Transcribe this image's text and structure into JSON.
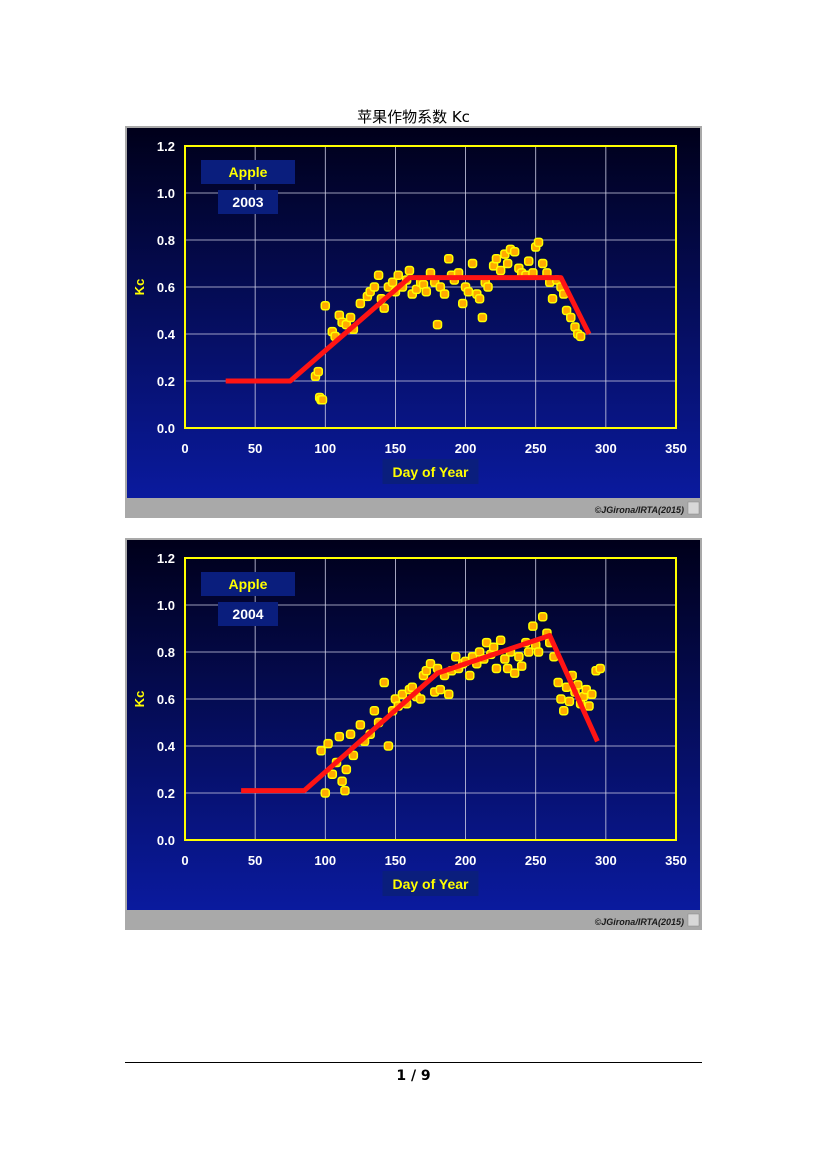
{
  "document": {
    "title": "苹果作物系数 Kc",
    "page_number": "1 / 9"
  },
  "colors": {
    "background_top": "#00001a",
    "background_bottom": "#0a1a9e",
    "plot_frame": "#ffff00",
    "grid": "#cfcfe6",
    "tick_text": "#ffffff",
    "axis_label": "#ffff00",
    "kc_curve": "#ff1414",
    "point_fill": "#ffaa00",
    "point_stroke": "#ffff00",
    "label_box": "#0a1e7d",
    "footer_bar": "#a9a9a9"
  },
  "chart_data": [
    {
      "type": "line+scatter",
      "title": "",
      "xlabel": "Day of Year",
      "ylabel": "Kc",
      "xlim": [
        0,
        350
      ],
      "ylim": [
        0.0,
        1.2
      ],
      "xticks": [
        "0",
        "50",
        "100",
        "150",
        "200",
        "250",
        "300",
        "350"
      ],
      "yticks": [
        "0.0",
        "0.2",
        "0.4",
        "0.6",
        "0.8",
        "1.0",
        "1.2"
      ],
      "grid": true,
      "labels": [
        "Apple",
        "2003"
      ],
      "copyright": "©JGirona/IRTA(2015)",
      "kc_curve": {
        "x": [
          29,
          75,
          160,
          268,
          288
        ],
        "y": [
          0.2,
          0.2,
          0.64,
          0.64,
          0.4
        ]
      },
      "points": {
        "x": [
          93,
          95,
          96,
          97,
          98,
          100,
          105,
          107,
          110,
          112,
          115,
          118,
          120,
          125,
          130,
          132,
          135,
          138,
          140,
          142,
          145,
          148,
          150,
          152,
          155,
          158,
          160,
          162,
          165,
          168,
          170,
          172,
          175,
          178,
          180,
          182,
          185,
          188,
          190,
          192,
          195,
          198,
          200,
          202,
          205,
          208,
          210,
          212,
          214,
          216,
          220,
          222,
          225,
          228,
          230,
          232,
          235,
          238,
          240,
          243,
          245,
          248,
          250,
          252,
          255,
          258,
          260,
          262,
          265,
          268,
          270,
          272,
          275,
          278,
          280,
          282
        ],
        "y": [
          0.22,
          0.24,
          0.13,
          0.12,
          0.12,
          0.52,
          0.41,
          0.39,
          0.48,
          0.45,
          0.44,
          0.47,
          0.42,
          0.53,
          0.56,
          0.58,
          0.6,
          0.65,
          0.55,
          0.51,
          0.6,
          0.62,
          0.58,
          0.65,
          0.6,
          0.63,
          0.67,
          0.57,
          0.59,
          0.62,
          0.61,
          0.58,
          0.66,
          0.62,
          0.44,
          0.6,
          0.57,
          0.72,
          0.65,
          0.63,
          0.66,
          0.53,
          0.6,
          0.58,
          0.7,
          0.57,
          0.55,
          0.47,
          0.62,
          0.6,
          0.69,
          0.72,
          0.67,
          0.74,
          0.7,
          0.76,
          0.75,
          0.68,
          0.66,
          0.65,
          0.71,
          0.66,
          0.77,
          0.79,
          0.7,
          0.66,
          0.62,
          0.55,
          0.63,
          0.6,
          0.57,
          0.5,
          0.47,
          0.43,
          0.4,
          0.39
        ]
      }
    },
    {
      "type": "line+scatter",
      "title": "",
      "xlabel": "Day of Year",
      "ylabel": "Kc",
      "xlim": [
        0,
        350
      ],
      "ylim": [
        0.0,
        1.2
      ],
      "xticks": [
        "0",
        "50",
        "100",
        "150",
        "200",
        "250",
        "300",
        "350"
      ],
      "yticks": [
        "0.0",
        "0.2",
        "0.4",
        "0.6",
        "0.8",
        "1.0",
        "1.2"
      ],
      "grid": true,
      "labels": [
        "Apple",
        "2004"
      ],
      "copyright": "©JGirona/IRTA(2015)",
      "kc_curve": {
        "x": [
          40,
          85,
          180,
          260,
          294
        ],
        "y": [
          0.21,
          0.21,
          0.71,
          0.87,
          0.42
        ]
      },
      "points": {
        "x": [
          97,
          100,
          102,
          105,
          108,
          110,
          112,
          114,
          115,
          118,
          120,
          125,
          128,
          132,
          135,
          138,
          142,
          145,
          148,
          150,
          152,
          155,
          158,
          160,
          162,
          165,
          168,
          170,
          172,
          175,
          178,
          180,
          182,
          185,
          188,
          190,
          193,
          195,
          198,
          200,
          203,
          205,
          208,
          210,
          213,
          215,
          218,
          220,
          222,
          225,
          228,
          230,
          232,
          235,
          238,
          240,
          243,
          245,
          248,
          250,
          252,
          255,
          258,
          260,
          263,
          266,
          268,
          270,
          272,
          274,
          276,
          278,
          280,
          282,
          284,
          286,
          288,
          290,
          293,
          296
        ],
        "y": [
          0.38,
          0.2,
          0.41,
          0.28,
          0.33,
          0.44,
          0.25,
          0.21,
          0.3,
          0.45,
          0.36,
          0.49,
          0.42,
          0.45,
          0.55,
          0.5,
          0.67,
          0.4,
          0.55,
          0.6,
          0.57,
          0.62,
          0.58,
          0.64,
          0.65,
          0.61,
          0.6,
          0.7,
          0.72,
          0.75,
          0.63,
          0.73,
          0.64,
          0.7,
          0.62,
          0.72,
          0.78,
          0.73,
          0.75,
          0.76,
          0.7,
          0.78,
          0.75,
          0.8,
          0.77,
          0.84,
          0.79,
          0.82,
          0.73,
          0.85,
          0.77,
          0.73,
          0.8,
          0.71,
          0.78,
          0.74,
          0.84,
          0.8,
          0.91,
          0.83,
          0.8,
          0.95,
          0.88,
          0.84,
          0.78,
          0.67,
          0.6,
          0.55,
          0.65,
          0.59,
          0.7,
          0.63,
          0.66,
          0.58,
          0.61,
          0.64,
          0.57,
          0.62,
          0.72,
          0.73
        ]
      }
    }
  ]
}
